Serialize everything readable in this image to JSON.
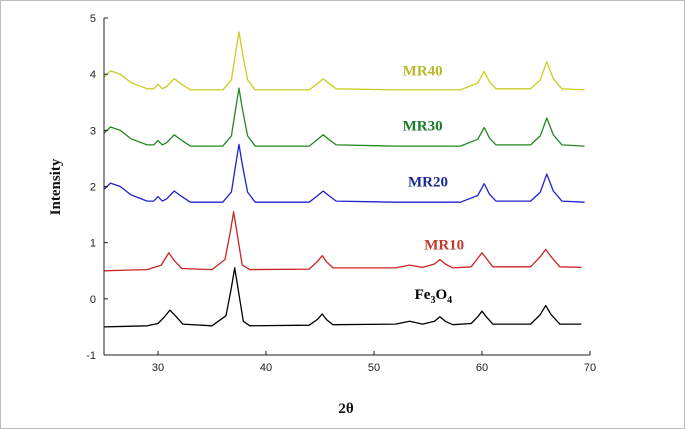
{
  "chart_data": {
    "type": "line",
    "xlabel": "2θ",
    "ylabel": "Intensity",
    "xlim": [
      25,
      70
    ],
    "ylim": [
      -1,
      5
    ],
    "xticks": [
      30,
      40,
      50,
      60,
      70
    ],
    "yticks": [
      -1,
      0,
      1,
      2,
      3,
      4,
      5
    ],
    "grid": false,
    "legend": "inline labels beside each curve",
    "series": [
      {
        "name": "Fe3O4",
        "label_base": "Fe",
        "label_sub1": "3",
        "label_mid": "O",
        "label_sub2": "4",
        "color": "#000000",
        "label_color": "#000000",
        "label_anchor": [
          55.5,
          0.0
        ],
        "points": [
          [
            25,
            -0.5
          ],
          [
            29,
            -0.48
          ],
          [
            30,
            -0.44
          ],
          [
            30.6,
            -0.32
          ],
          [
            31.1,
            -0.2
          ],
          [
            31.6,
            -0.3
          ],
          [
            32.3,
            -0.45
          ],
          [
            35,
            -0.48
          ],
          [
            36.3,
            -0.3
          ],
          [
            36.8,
            0.2
          ],
          [
            37.1,
            0.55
          ],
          [
            37.4,
            0.2
          ],
          [
            37.9,
            -0.4
          ],
          [
            38.5,
            -0.48
          ],
          [
            44,
            -0.47
          ],
          [
            44.8,
            -0.36
          ],
          [
            45.2,
            -0.27
          ],
          [
            45.6,
            -0.37
          ],
          [
            46.2,
            -0.46
          ],
          [
            52,
            -0.45
          ],
          [
            53.3,
            -0.4
          ],
          [
            54.5,
            -0.45
          ],
          [
            55.6,
            -0.4
          ],
          [
            56.1,
            -0.32
          ],
          [
            56.6,
            -0.4
          ],
          [
            57.3,
            -0.46
          ],
          [
            59,
            -0.44
          ],
          [
            59.6,
            -0.32
          ],
          [
            60,
            -0.22
          ],
          [
            60.4,
            -0.32
          ],
          [
            61,
            -0.45
          ],
          [
            64.5,
            -0.45
          ],
          [
            65.4,
            -0.28
          ],
          [
            65.9,
            -0.12
          ],
          [
            66.4,
            -0.28
          ],
          [
            67.2,
            -0.45
          ],
          [
            69.2,
            -0.45
          ]
        ]
      },
      {
        "name": "MR10",
        "color": "#cc2222",
        "label_color": "#c0392b",
        "label_anchor": [
          56.5,
          0.88
        ],
        "points": [
          [
            25,
            0.5
          ],
          [
            29,
            0.52
          ],
          [
            30.3,
            0.6
          ],
          [
            31,
            0.82
          ],
          [
            31.5,
            0.68
          ],
          [
            32.2,
            0.54
          ],
          [
            35,
            0.52
          ],
          [
            36.2,
            0.7
          ],
          [
            36.7,
            1.2
          ],
          [
            37,
            1.55
          ],
          [
            37.3,
            1.2
          ],
          [
            37.8,
            0.6
          ],
          [
            38.5,
            0.52
          ],
          [
            44,
            0.53
          ],
          [
            44.8,
            0.67
          ],
          [
            45.2,
            0.77
          ],
          [
            45.6,
            0.66
          ],
          [
            46.2,
            0.55
          ],
          [
            52,
            0.55
          ],
          [
            53.3,
            0.6
          ],
          [
            54.5,
            0.56
          ],
          [
            55.6,
            0.62
          ],
          [
            56.1,
            0.7
          ],
          [
            56.6,
            0.62
          ],
          [
            57.3,
            0.55
          ],
          [
            59,
            0.57
          ],
          [
            59.6,
            0.72
          ],
          [
            60,
            0.82
          ],
          [
            60.4,
            0.72
          ],
          [
            61,
            0.57
          ],
          [
            64.5,
            0.57
          ],
          [
            65.4,
            0.75
          ],
          [
            65.9,
            0.88
          ],
          [
            66.4,
            0.75
          ],
          [
            67.2,
            0.57
          ],
          [
            69.2,
            0.56
          ]
        ]
      },
      {
        "name": "MR20",
        "color": "#2222cc",
        "label_color": "#1a2a9a",
        "label_anchor": [
          55.0,
          2.0
        ],
        "points": [
          [
            25,
            1.95
          ],
          [
            25.6,
            2.06
          ],
          [
            26.5,
            2.0
          ],
          [
            27.5,
            1.85
          ],
          [
            29,
            1.74
          ],
          [
            29.6,
            1.74
          ],
          [
            30,
            1.82
          ],
          [
            30.4,
            1.74
          ],
          [
            30.8,
            1.78
          ],
          [
            31.5,
            1.92
          ],
          [
            32.2,
            1.82
          ],
          [
            33,
            1.72
          ],
          [
            36,
            1.72
          ],
          [
            36.8,
            1.9
          ],
          [
            37.2,
            2.4
          ],
          [
            37.5,
            2.75
          ],
          [
            37.8,
            2.4
          ],
          [
            38.3,
            1.9
          ],
          [
            39,
            1.72
          ],
          [
            44,
            1.72
          ],
          [
            44.8,
            1.84
          ],
          [
            45.3,
            1.92
          ],
          [
            45.8,
            1.84
          ],
          [
            46.5,
            1.74
          ],
          [
            52,
            1.72
          ],
          [
            58,
            1.72
          ],
          [
            59.6,
            1.84
          ],
          [
            60.2,
            2.05
          ],
          [
            60.7,
            1.86
          ],
          [
            61.3,
            1.74
          ],
          [
            64.5,
            1.74
          ],
          [
            65.4,
            1.9
          ],
          [
            66,
            2.22
          ],
          [
            66.6,
            1.92
          ],
          [
            67.4,
            1.74
          ],
          [
            69.5,
            1.72
          ]
        ]
      },
      {
        "name": "MR30",
        "color": "#228822",
        "label_color": "#1a7a2a",
        "label_anchor": [
          54.5,
          3.0
        ],
        "points": [
          [
            25,
            2.95
          ],
          [
            25.6,
            3.06
          ],
          [
            26.5,
            3.0
          ],
          [
            27.5,
            2.85
          ],
          [
            29,
            2.74
          ],
          [
            29.6,
            2.74
          ],
          [
            30,
            2.82
          ],
          [
            30.4,
            2.74
          ],
          [
            30.8,
            2.78
          ],
          [
            31.5,
            2.92
          ],
          [
            32.2,
            2.82
          ],
          [
            33,
            2.72
          ],
          [
            36,
            2.72
          ],
          [
            36.8,
            2.9
          ],
          [
            37.2,
            3.4
          ],
          [
            37.5,
            3.75
          ],
          [
            37.8,
            3.4
          ],
          [
            38.3,
            2.9
          ],
          [
            39,
            2.72
          ],
          [
            44,
            2.72
          ],
          [
            44.8,
            2.84
          ],
          [
            45.3,
            2.92
          ],
          [
            45.8,
            2.84
          ],
          [
            46.5,
            2.74
          ],
          [
            52,
            2.72
          ],
          [
            58,
            2.72
          ],
          [
            59.6,
            2.84
          ],
          [
            60.2,
            3.05
          ],
          [
            60.7,
            2.86
          ],
          [
            61.3,
            2.74
          ],
          [
            64.5,
            2.74
          ],
          [
            65.4,
            2.9
          ],
          [
            66,
            3.22
          ],
          [
            66.6,
            2.92
          ],
          [
            67.4,
            2.74
          ],
          [
            69.5,
            2.72
          ]
        ]
      },
      {
        "name": "MR40",
        "color": "#cccc22",
        "label_color": "#b8b82a",
        "label_anchor": [
          54.5,
          3.98
        ],
        "points": [
          [
            25,
            3.95
          ],
          [
            25.6,
            4.06
          ],
          [
            26.5,
            4.0
          ],
          [
            27.5,
            3.85
          ],
          [
            29,
            3.74
          ],
          [
            29.6,
            3.74
          ],
          [
            30,
            3.82
          ],
          [
            30.4,
            3.74
          ],
          [
            30.8,
            3.78
          ],
          [
            31.5,
            3.92
          ],
          [
            32.2,
            3.82
          ],
          [
            33,
            3.72
          ],
          [
            36,
            3.72
          ],
          [
            36.8,
            3.9
          ],
          [
            37.2,
            4.4
          ],
          [
            37.5,
            4.75
          ],
          [
            37.8,
            4.4
          ],
          [
            38.3,
            3.9
          ],
          [
            39,
            3.72
          ],
          [
            44,
            3.72
          ],
          [
            44.8,
            3.84
          ],
          [
            45.3,
            3.92
          ],
          [
            45.8,
            3.84
          ],
          [
            46.5,
            3.74
          ],
          [
            52,
            3.72
          ],
          [
            58,
            3.72
          ],
          [
            59.6,
            3.84
          ],
          [
            60.2,
            4.05
          ],
          [
            60.7,
            3.86
          ],
          [
            61.3,
            3.74
          ],
          [
            64.5,
            3.74
          ],
          [
            65.4,
            3.9
          ],
          [
            66,
            4.22
          ],
          [
            66.6,
            3.92
          ],
          [
            67.4,
            3.74
          ],
          [
            69.5,
            3.72
          ]
        ]
      }
    ]
  }
}
